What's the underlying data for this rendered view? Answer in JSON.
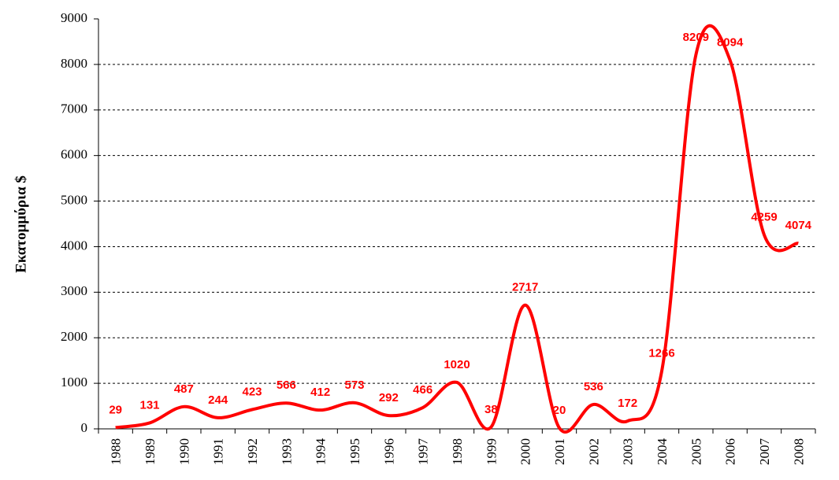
{
  "chart_data": {
    "type": "line",
    "y_label": "Εκατομμύρια $",
    "categories": [
      "1988",
      "1989",
      "1990",
      "1991",
      "1992",
      "1993",
      "1994",
      "1995",
      "1996",
      "1997",
      "1998",
      "1999",
      "2000",
      "2001",
      "2002",
      "2003",
      "2004",
      "2005",
      "2006",
      "2007",
      "2008"
    ],
    "values": [
      29,
      131,
      487,
      244,
      423,
      566,
      412,
      573,
      292,
      466,
      1020,
      38,
      2717,
      20,
      536,
      172,
      1266,
      8209,
      8094,
      4259,
      4074
    ],
    "color": "#ff0000",
    "ylim": [
      0,
      9000
    ],
    "yticks": [
      0,
      1000,
      2000,
      3000,
      4000,
      5000,
      6000,
      7000,
      8000,
      9000
    ],
    "grid": true
  }
}
